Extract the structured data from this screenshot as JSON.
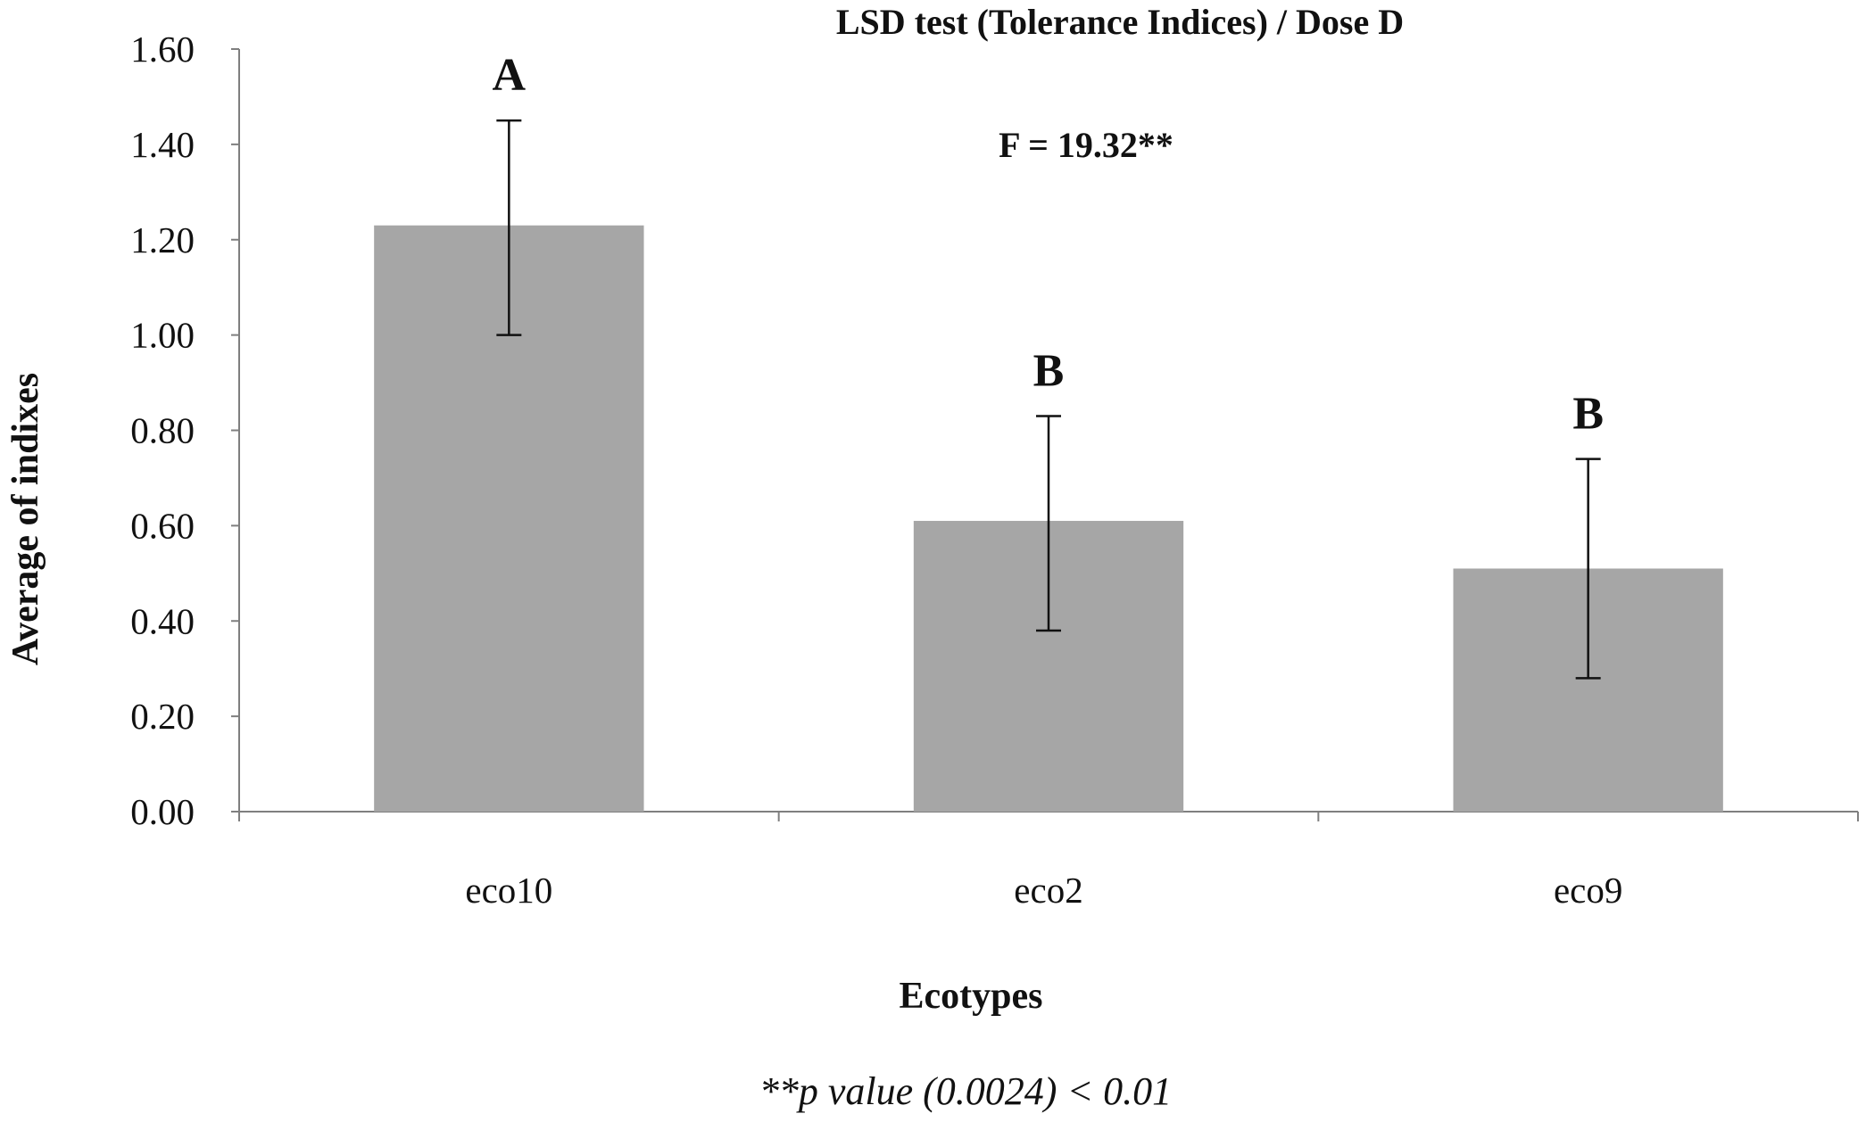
{
  "chart_data": {
    "type": "bar",
    "title": "LSD test (Tolerance Indices) / Dose D",
    "xlabel": "Ecotypes",
    "ylabel": "Average of indixes",
    "categories": [
      "eco10",
      "eco2",
      "eco9"
    ],
    "values": [
      1.23,
      0.61,
      0.51
    ],
    "error_upper": [
      1.45,
      0.83,
      0.74
    ],
    "error_lower": [
      1.0,
      0.38,
      0.28
    ],
    "group_labels": [
      "A",
      "B",
      "B"
    ],
    "ylim": [
      0,
      1.6
    ],
    "yticks": [
      "0.00",
      "0.20",
      "0.40",
      "0.60",
      "0.80",
      "1.00",
      "1.20",
      "1.40",
      "1.60"
    ],
    "grid": false,
    "legend": "none",
    "bar_color": "#a6a6a6",
    "annotation": "F = 19.32**",
    "footnote": "**p value (0.0024) < 0.01"
  }
}
